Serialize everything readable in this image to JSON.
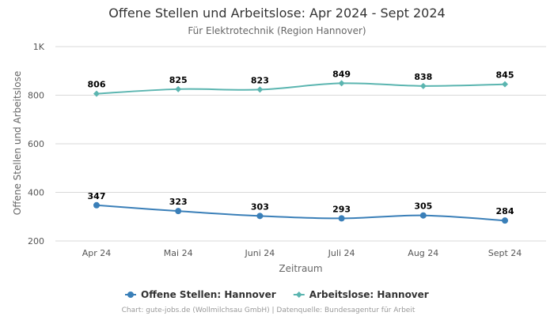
{
  "chart_data": {
    "type": "line",
    "title": "Offene Stellen und Arbeitslose: Apr 2024 - Sept 2024",
    "subtitle": "Für Elektrotechnik (Region Hannover)",
    "xlabel": "Zeitraum",
    "ylabel": "Offene Stellen und Arbeitslose",
    "categories": [
      "Apr 24",
      "Mai 24",
      "Juni 24",
      "Juli 24",
      "Aug 24",
      "Sept 24"
    ],
    "ylim": [
      200,
      1000
    ],
    "yticks": [
      {
        "value": 200,
        "label": "200"
      },
      {
        "value": 400,
        "label": "400"
      },
      {
        "value": 600,
        "label": "600"
      },
      {
        "value": 800,
        "label": "800"
      },
      {
        "value": 1000,
        "label": "1K"
      }
    ],
    "grid": true,
    "legend_position": "bottom",
    "series": [
      {
        "name": "Offene Stellen: Hannover",
        "color": "#3a7fb8",
        "marker": "circle",
        "values": [
          347,
          323,
          303,
          293,
          305,
          284
        ]
      },
      {
        "name": "Arbeitslose: Hannover",
        "color": "#5bb5b0",
        "marker": "diamond",
        "values": [
          806,
          825,
          823,
          849,
          838,
          845
        ]
      }
    ],
    "credits": "Chart: gute-jobs.de (Wollmilchsau GmbH) | Datenquelle: Bundesagentur für Arbeit"
  }
}
